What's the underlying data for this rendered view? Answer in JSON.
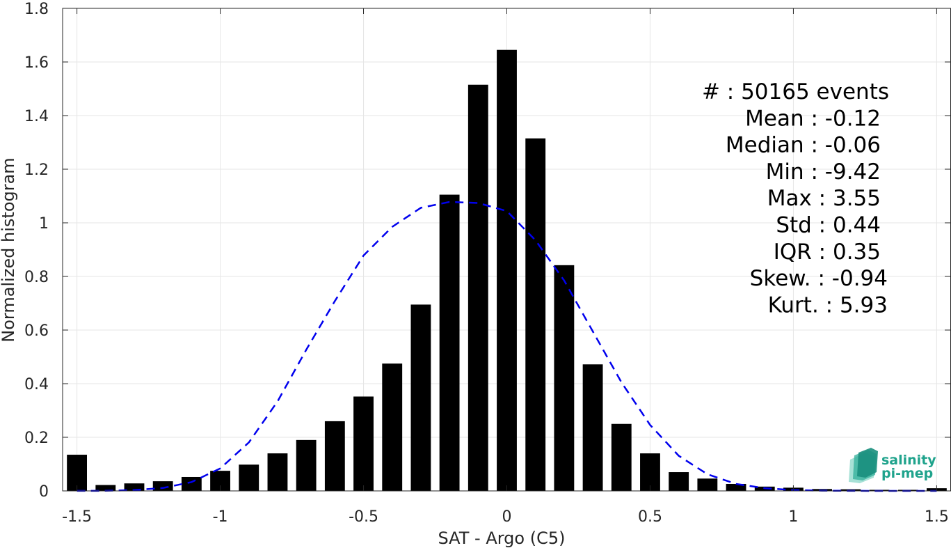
{
  "chart_data": {
    "type": "bar",
    "xlabel": "SAT - Argo (C5)",
    "ylabel": "Normalized histogram",
    "xlim": [
      -1.55,
      1.55
    ],
    "ylim": [
      0,
      1.8
    ],
    "xticks": [
      -1.5,
      -1,
      -0.5,
      0,
      0.5,
      1,
      1.5
    ],
    "xtick_labels": [
      "-1.5",
      "-1",
      "-0.5",
      "0",
      "0.5",
      "1",
      "1.5"
    ],
    "yticks": [
      0,
      0.2,
      0.4,
      0.6,
      0.8,
      1,
      1.2,
      1.4,
      1.6,
      1.8
    ],
    "ytick_labels": [
      "0",
      "0.2",
      "0.4",
      "0.6",
      "0.8",
      "1",
      "1.2",
      "1.4",
      "1.6",
      "1.8"
    ],
    "grid": true,
    "bar_color": "#000000",
    "bar_width": 0.07,
    "series": [
      {
        "type": "bar",
        "x": [
          -1.5,
          -1.4,
          -1.3,
          -1.2,
          -1.1,
          -1.0,
          -0.9,
          -0.8,
          -0.7,
          -0.6,
          -0.5,
          -0.4,
          -0.3,
          -0.2,
          -0.1,
          0.0,
          0.1,
          0.2,
          0.3,
          0.4,
          0.5,
          0.6,
          0.7,
          0.8,
          0.9,
          1.0,
          1.1,
          1.2,
          1.3,
          1.4,
          1.5
        ],
        "values": [
          0.135,
          0.022,
          0.028,
          0.036,
          0.052,
          0.075,
          0.098,
          0.14,
          0.19,
          0.26,
          0.352,
          0.475,
          0.695,
          1.105,
          1.515,
          1.645,
          1.315,
          0.842,
          0.472,
          0.25,
          0.14,
          0.07,
          0.046,
          0.026,
          0.016,
          0.012,
          0.007,
          0.006,
          0.004,
          0.004,
          0.01
        ]
      },
      {
        "type": "line",
        "style": "dashed",
        "color": "#0000ee",
        "x": [
          -1.5,
          -1.4,
          -1.3,
          -1.2,
          -1.1,
          -1.0,
          -0.9,
          -0.8,
          -0.7,
          -0.6,
          -0.5,
          -0.4,
          -0.3,
          -0.2,
          -0.1,
          0.0,
          0.1,
          0.2,
          0.3,
          0.4,
          0.5,
          0.6,
          0.7,
          0.8,
          0.9,
          1.0,
          1.1,
          1.2,
          1.3,
          1.4,
          1.5
        ],
        "values": [
          0.0002,
          0.0006,
          0.003,
          0.011,
          0.033,
          0.084,
          0.181,
          0.334,
          0.526,
          0.708,
          0.878,
          0.985,
          1.056,
          1.078,
          1.074,
          1.044,
          0.935,
          0.785,
          0.595,
          0.405,
          0.246,
          0.131,
          0.062,
          0.026,
          0.01,
          0.003,
          0.001,
          0.0003,
          0.0001,
          0.0,
          0.0
        ]
      }
    ],
    "annotations": [
      {
        "label": "#  : 50165 events"
      },
      {
        "label": "Mean : -0.12"
      },
      {
        "label": "Median : -0.06"
      },
      {
        "label": "Min : -9.42"
      },
      {
        "label": "Max : 3.55"
      },
      {
        "label": "Std : 0.44"
      },
      {
        "label": "IQR : 0.35"
      },
      {
        "label": "Skew. : -0.94"
      },
      {
        "label": "Kurt. : 5.93"
      }
    ]
  },
  "logo": {
    "line1": "salinity",
    "line2": "pi-mep",
    "color": "#1fa38c"
  }
}
